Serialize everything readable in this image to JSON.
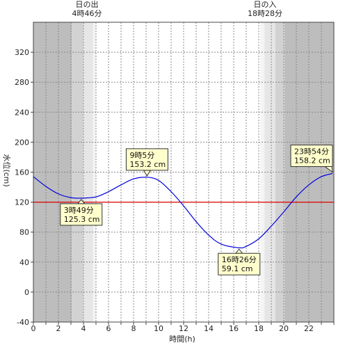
{
  "chart_data": {
    "type": "line",
    "xlabel": "時間(h)",
    "ylabel": "水位(cm)",
    "xlim": [
      0,
      24
    ],
    "ylim": [
      -40,
      360
    ],
    "x_ticks": [
      0,
      2,
      4,
      6,
      8,
      10,
      12,
      14,
      16,
      18,
      20,
      22
    ],
    "y_ticks": [
      -40,
      0,
      40,
      80,
      120,
      160,
      200,
      240,
      280,
      320
    ],
    "grid": true,
    "reference_line": {
      "value": 120,
      "color": "#e00000"
    },
    "sunrise": {
      "label": "日の出",
      "time": "4時46分",
      "hour": 4.77
    },
    "sunset": {
      "label": "日の入",
      "time": "18時28分",
      "hour": 18.47
    },
    "series": [
      {
        "color": "#0000dd",
        "points": [
          [
            0,
            154
          ],
          [
            1,
            141
          ],
          [
            2,
            131
          ],
          [
            3,
            126
          ],
          [
            3.82,
            125.3
          ],
          [
            5,
            127
          ],
          [
            6,
            134
          ],
          [
            7,
            143
          ],
          [
            8,
            151
          ],
          [
            9.08,
            153.2
          ],
          [
            10,
            149
          ],
          [
            11,
            134
          ],
          [
            12,
            115
          ],
          [
            13,
            94
          ],
          [
            14,
            76
          ],
          [
            15,
            64
          ],
          [
            16.43,
            59.1
          ],
          [
            17,
            61
          ],
          [
            18,
            71
          ],
          [
            19,
            88
          ],
          [
            20,
            107
          ],
          [
            21,
            127
          ],
          [
            22,
            143
          ],
          [
            23,
            154
          ],
          [
            23.9,
            158.2
          ]
        ]
      }
    ],
    "annotations": [
      {
        "time": "3時49分",
        "value": "125.3 cm",
        "x": 3.82,
        "y": 125.3,
        "placement": "below"
      },
      {
        "time": "9時5分",
        "value": "153.2 cm",
        "x": 9.08,
        "y": 153.2,
        "placement": "above"
      },
      {
        "time": "16時26分",
        "value": "59.1 cm",
        "x": 16.43,
        "y": 59.1,
        "placement": "below"
      },
      {
        "time": "23時54分",
        "value": "158.2 cm",
        "x": 23.9,
        "y": 158.2,
        "placement": "above"
      }
    ]
  }
}
